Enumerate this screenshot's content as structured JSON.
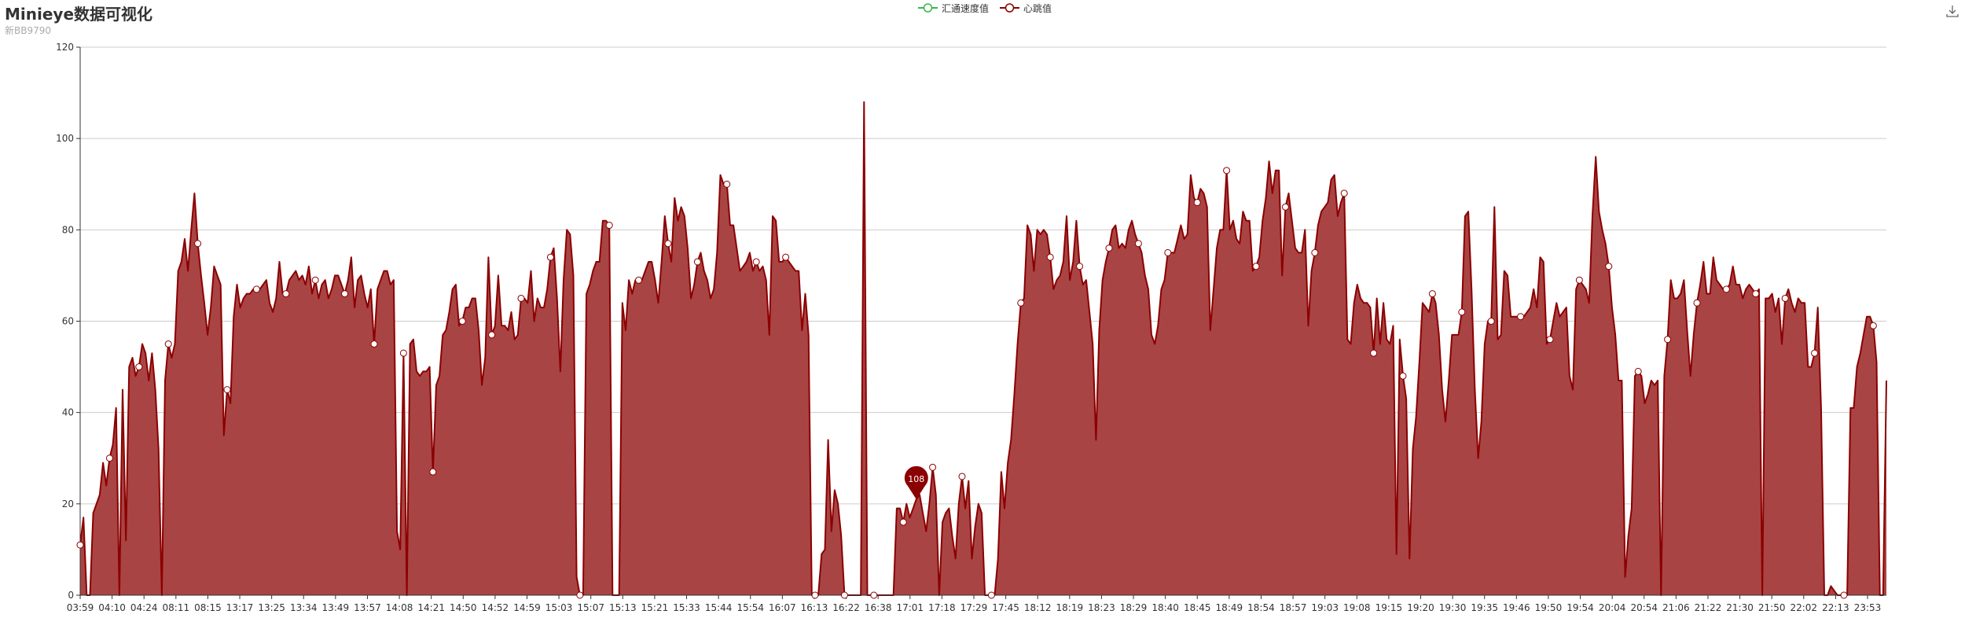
{
  "title": "Minieye数据可视化",
  "subtitle": "新BB9790",
  "toolbox": {
    "icon": "download-icon"
  },
  "colors": {
    "series_hr": "#8b0000",
    "area_hr": "#a94444",
    "series_speed": "#3cb54a",
    "grid": "#cccccc",
    "axis": "#333333"
  },
  "legend": [
    {
      "name": "汇通速度值",
      "color": "#3cb54a"
    },
    {
      "name": "心跳值",
      "color": "#8b0000"
    }
  ],
  "chart_data": {
    "type": "area",
    "title": "Minieye数据可视化",
    "subtitle": "新BB9790",
    "ylim": [
      0,
      120
    ],
    "yticks": [
      0,
      20,
      40,
      60,
      80,
      100,
      120
    ],
    "grid": "horizontal",
    "legend_position": "top-center",
    "xticks": [
      "03:59",
      "04:10",
      "04:24",
      "08:11",
      "08:15",
      "13:17",
      "13:25",
      "13:34",
      "13:49",
      "13:57",
      "14:08",
      "14:21",
      "14:50",
      "14:52",
      "14:59",
      "15:03",
      "15:07",
      "15:13",
      "15:21",
      "15:33",
      "15:44",
      "15:54",
      "16:07",
      "16:13",
      "16:22",
      "16:38",
      "17:01",
      "17:18",
      "17:29",
      "17:45",
      "18:12",
      "18:19",
      "18:23",
      "18:29",
      "18:40",
      "18:45",
      "18:49",
      "18:54",
      "18:57",
      "19:03",
      "19:08",
      "19:15",
      "19:20",
      "19:30",
      "19:35",
      "19:46",
      "19:50",
      "19:54",
      "20:04",
      "20:54",
      "21:06",
      "21:22",
      "21:30",
      "21:50",
      "22:02",
      "22:13",
      "23:53"
    ],
    "series": [
      {
        "name": "汇通速度值",
        "values": []
      },
      {
        "name": "心跳值",
        "values": [
          11,
          17,
          0,
          0,
          18,
          20,
          22,
          29,
          24,
          30,
          33,
          41,
          0,
          45,
          12,
          50,
          52,
          48,
          50,
          55,
          53,
          47,
          53,
          45,
          32,
          0,
          47,
          55,
          52,
          55,
          71,
          73,
          78,
          71,
          80,
          88,
          77,
          70,
          64,
          57,
          63,
          72,
          70,
          68,
          35,
          45,
          42,
          61,
          68,
          63,
          65,
          66,
          66,
          67,
          67,
          67,
          68,
          69,
          64,
          62,
          65,
          73,
          66,
          66,
          69,
          70,
          71,
          69,
          70,
          68,
          72,
          66,
          69,
          65,
          68,
          69,
          65,
          67,
          70,
          70,
          68,
          66,
          69,
          74,
          63,
          69,
          70,
          66,
          63,
          67,
          55,
          67,
          69,
          71,
          71,
          68,
          69,
          14,
          10,
          53,
          0,
          55,
          56,
          49,
          48,
          49,
          49,
          50,
          27,
          46,
          48,
          57,
          58,
          62,
          67,
          68,
          59,
          60,
          63,
          63,
          65,
          65,
          58,
          46,
          52,
          74,
          57,
          59,
          70,
          59,
          59,
          58,
          62,
          56,
          57,
          65,
          65,
          64,
          71,
          60,
          65,
          63,
          63,
          67,
          74,
          76,
          65,
          49,
          69,
          80,
          79,
          70,
          4,
          0,
          0,
          66,
          68,
          71,
          73,
          73,
          82,
          82,
          81,
          0,
          0,
          0,
          64,
          58,
          69,
          66,
          69,
          69,
          69,
          71,
          73,
          73,
          69,
          64,
          73,
          83,
          77,
          73,
          87,
          82,
          85,
          83,
          76,
          65,
          68,
          73,
          75,
          71,
          69,
          65,
          67,
          75,
          92,
          90,
          90,
          81,
          81,
          76,
          71,
          72,
          73,
          75,
          71,
          73,
          71,
          72,
          69,
          57,
          83,
          82,
          73,
          73,
          74,
          73,
          72,
          71,
          71,
          58,
          66,
          57,
          0,
          0,
          0,
          9,
          10,
          34,
          14,
          23,
          20,
          13,
          0,
          0,
          0,
          0,
          0,
          0,
          108,
          0,
          0,
          0,
          0,
          0,
          0,
          0,
          0,
          0,
          19,
          19,
          16,
          20,
          17,
          19,
          21,
          22,
          18,
          14,
          20,
          28,
          22,
          0,
          16,
          18,
          19,
          13,
          8,
          20,
          26,
          19,
          25,
          8,
          15,
          20,
          18,
          0,
          0,
          0,
          0,
          8,
          27,
          19,
          29,
          34,
          44,
          55,
          64,
          65,
          81,
          79,
          71,
          80,
          79,
          80,
          79,
          74,
          67,
          69,
          70,
          73,
          83,
          69,
          73,
          82,
          72,
          68,
          69,
          62,
          55,
          34,
          58,
          69,
          73,
          76,
          80,
          81,
          76,
          77,
          76,
          80,
          82,
          79,
          77,
          75,
          70,
          67,
          57,
          55,
          59,
          67,
          69,
          75,
          75,
          75,
          78,
          81,
          78,
          79,
          92,
          87,
          86,
          89,
          88,
          85,
          58,
          67,
          76,
          80,
          80,
          93,
          80,
          82,
          78,
          77,
          84,
          82,
          82,
          71,
          72,
          74,
          82,
          87,
          95,
          88,
          93,
          93,
          70,
          85,
          88,
          82,
          76,
          75,
          75,
          80,
          59,
          71,
          75,
          81,
          84,
          85,
          86,
          91,
          92,
          83,
          86,
          88,
          56,
          55,
          64,
          68,
          65,
          64,
          64,
          63,
          53,
          65,
          55,
          64,
          56,
          55,
          59,
          9,
          56,
          48,
          43,
          8,
          32,
          39,
          51,
          64,
          63,
          62,
          66,
          64,
          57,
          45,
          38,
          47,
          57,
          57,
          57,
          62,
          83,
          84,
          67,
          45,
          30,
          38,
          55,
          60,
          60,
          85,
          56,
          57,
          71,
          70,
          61,
          61,
          61,
          61,
          61,
          62,
          63,
          67,
          63,
          74,
          73,
          55,
          56,
          60,
          64,
          61,
          62,
          63,
          48,
          45,
          67,
          69,
          68,
          67,
          64,
          83,
          96,
          84,
          80,
          77,
          72,
          63,
          57,
          47,
          47,
          4,
          13,
          19,
          48,
          49,
          48,
          42,
          44,
          47,
          46,
          47,
          0,
          48,
          56,
          69,
          65,
          65,
          66,
          69,
          58,
          48,
          57,
          64,
          68,
          73,
          66,
          66,
          74,
          69,
          68,
          67,
          67,
          68,
          72,
          68,
          68,
          65,
          67,
          68,
          67,
          66,
          67,
          0,
          65,
          65,
          66,
          62,
          65,
          55,
          65,
          67,
          64,
          62,
          65,
          64,
          64,
          50,
          50,
          53,
          63,
          41,
          0,
          0,
          2,
          1,
          0,
          0,
          0,
          0,
          41,
          41,
          50,
          53,
          57,
          61,
          61,
          59,
          51,
          0,
          0,
          47
        ]
      }
    ]
  },
  "pin": {
    "value": "108",
    "index": 256
  }
}
